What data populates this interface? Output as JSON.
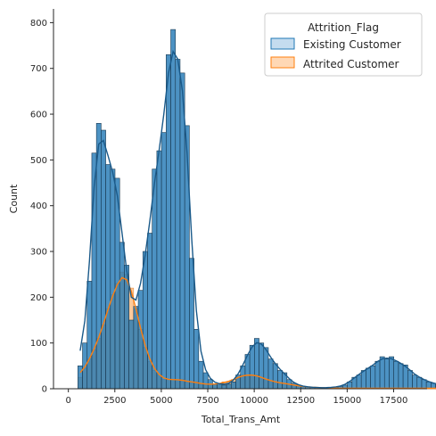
{
  "chart_data": {
    "type": "histogram",
    "title": "",
    "xlabel": "Total_Trans_Amt",
    "ylabel": "Count",
    "xlim": [
      -800,
      19300
    ],
    "ylim": [
      0,
      830
    ],
    "xticks": [
      0,
      2500,
      5000,
      7500,
      10000,
      12500,
      15000,
      17500
    ],
    "yticks": [
      0,
      100,
      200,
      300,
      400,
      500,
      600,
      700,
      800
    ],
    "grid": false,
    "kde": true,
    "legend": {
      "title": "Attrition_Flag",
      "placement": "top-right",
      "entries": [
        "Existing Customer",
        "Attrited Customer"
      ]
    },
    "bin_start": 510,
    "bin_width": 250,
    "series": [
      {
        "name": "Existing Customer",
        "color": "#1f77b4",
        "values": [
          50,
          100,
          235,
          515,
          580,
          565,
          490,
          480,
          460,
          320,
          270,
          150,
          180,
          215,
          300,
          340,
          480,
          520,
          560,
          730,
          785,
          720,
          690,
          575,
          285,
          130,
          60,
          35,
          20,
          10,
          12,
          8,
          10,
          15,
          30,
          50,
          75,
          95,
          110,
          100,
          90,
          65,
          55,
          40,
          35,
          20,
          12,
          8,
          5,
          4,
          3,
          3,
          2,
          2,
          3,
          4,
          5,
          8,
          15,
          25,
          30,
          40,
          45,
          50,
          60,
          70,
          65,
          70,
          60,
          55,
          52,
          40,
          30,
          25,
          20,
          15,
          12,
          10,
          8,
          5,
          3,
          2
        ]
      },
      {
        "name": "Attrited Customer",
        "color": "#ff7f0e",
        "values": [
          25,
          45,
          65,
          85,
          110,
          140,
          175,
          205,
          230,
          255,
          250,
          220,
          175,
          130,
          90,
          60,
          40,
          30,
          20,
          20,
          20,
          20,
          20,
          15,
          15,
          15,
          10,
          10,
          10,
          10,
          10,
          15,
          15,
          20,
          25,
          30,
          30,
          30,
          30,
          25,
          20,
          18,
          15,
          12,
          12,
          10,
          8,
          6,
          5,
          4,
          3,
          3,
          2,
          2,
          2,
          1,
          1,
          1,
          1,
          1,
          1,
          1,
          1,
          1,
          1,
          1,
          1,
          1,
          1,
          1,
          1,
          1,
          1,
          1,
          1,
          1,
          1,
          1,
          1,
          1,
          1,
          1
        ]
      }
    ]
  }
}
